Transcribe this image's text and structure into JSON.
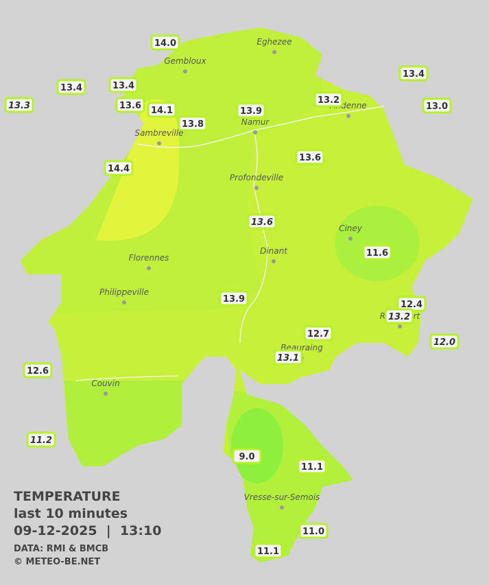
{
  "stations": [
    {
      "label": "14.0",
      "italic": false
    },
    {
      "label": "13.4",
      "italic": false
    },
    {
      "label": "13.4",
      "italic": false
    },
    {
      "label": "13.4",
      "italic": false
    },
    {
      "label": "13.3",
      "italic": true
    },
    {
      "label": "13.6",
      "italic": false
    },
    {
      "label": "14.1",
      "italic": false
    },
    {
      "label": "13.2",
      "italic": false
    },
    {
      "label": "13.0",
      "italic": false
    },
    {
      "label": "13.9",
      "italic": false
    },
    {
      "label": "13.8",
      "italic": false
    },
    {
      "label": "13.6",
      "italic": false
    },
    {
      "label": "14.4",
      "italic": false
    },
    {
      "label": "13.6",
      "italic": true
    },
    {
      "label": "11.6",
      "italic": false
    },
    {
      "label": "13.9",
      "italic": false
    },
    {
      "label": "12.4",
      "italic": false
    },
    {
      "label": "13.2",
      "italic": true
    },
    {
      "label": "12.7",
      "italic": false
    },
    {
      "label": "12.0",
      "italic": true
    },
    {
      "label": "13.1",
      "italic": true
    },
    {
      "label": "12.6",
      "italic": false
    },
    {
      "label": "11.2",
      "italic": true
    },
    {
      "label": "9.0",
      "italic": false
    },
    {
      "label": "11.1",
      "italic": false
    },
    {
      "label": "11.0",
      "italic": false
    },
    {
      "label": "11.1",
      "italic": false
    }
  ],
  "cities": [
    "Eghezee",
    "Gembloux",
    "Andenne",
    "Namur",
    "Sambreville",
    "Profondeville",
    "Ciney",
    "Dinant",
    "Florennes",
    "Philippeville",
    "Rochefort",
    "Beauraing",
    "Couvin",
    "Vresse-sur-Semois"
  ],
  "legend": {
    "title": "TEMPERATURE",
    "period": "last 10 minutes",
    "datetime": "09-12-2025  |  13:10",
    "source": "DATA: RMI & BMCB",
    "copyright": "© METEO-BE.NET"
  }
}
